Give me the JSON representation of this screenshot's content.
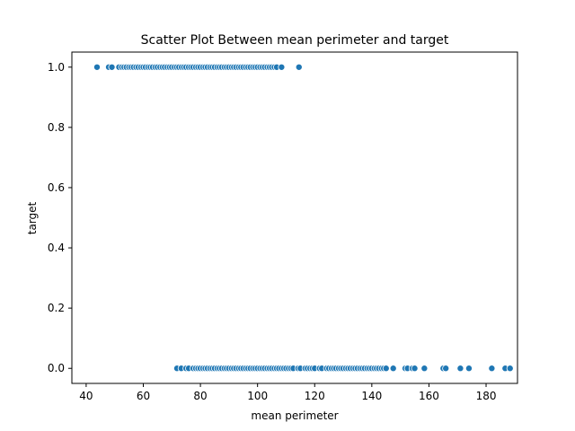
{
  "chart_data": {
    "type": "scatter",
    "title": "Scatter Plot Between mean perimeter and target",
    "xlabel": "mean perimeter",
    "ylabel": "target",
    "xlim": [
      35,
      191
    ],
    "ylim": [
      -0.05,
      1.05
    ],
    "xticks": [
      40,
      60,
      80,
      100,
      120,
      140,
      160,
      180
    ],
    "xtick_labels": [
      "40",
      "60",
      "80",
      "100",
      "120",
      "140",
      "160",
      "180"
    ],
    "yticks": [
      0.0,
      0.2,
      0.4,
      0.6,
      0.8,
      1.0
    ],
    "ytick_labels": [
      "0.0",
      "0.2",
      "0.4",
      "0.6",
      "0.8",
      "1.0"
    ],
    "grid": false,
    "marker_color": "#1f77b4",
    "series": [
      {
        "values_y": 1.0,
        "x": [
          43.8,
          47.9,
          49.0,
          51.5,
          52.5,
          53.3,
          54.1,
          55.0,
          55.8,
          56.6,
          57.5,
          58.3,
          59.2,
          60.0,
          60.8,
          61.7,
          62.5,
          63.3,
          64.2,
          65.0,
          65.9,
          66.7,
          67.5,
          68.4,
          69.2,
          70.0,
          70.9,
          71.7,
          72.5,
          73.4,
          74.2,
          75.0,
          75.9,
          76.7,
          77.5,
          78.4,
          79.2,
          80.0,
          80.9,
          81.7,
          82.5,
          83.4,
          84.2,
          85.0,
          85.9,
          86.7,
          87.5,
          88.4,
          89.2,
          90.0,
          90.9,
          91.7,
          92.5,
          93.4,
          94.2,
          95.0,
          95.9,
          96.7,
          97.5,
          98.4,
          99.2,
          100.0,
          100.9,
          101.7,
          102.5,
          103.4,
          104.2,
          105.0,
          105.9,
          106.7,
          108.4,
          114.5
        ]
      },
      {
        "values_y": 0.0,
        "x": [
          71.8,
          73.3,
          75.0,
          75.9,
          77.5,
          78.4,
          79.2,
          80.0,
          80.9,
          81.7,
          82.5,
          83.4,
          84.2,
          85.0,
          85.9,
          86.7,
          87.5,
          88.4,
          89.2,
          90.0,
          90.9,
          91.7,
          92.5,
          93.4,
          94.2,
          95.0,
          95.9,
          96.7,
          97.5,
          98.4,
          99.2,
          100.0,
          100.9,
          101.7,
          102.5,
          103.4,
          104.2,
          105.0,
          105.9,
          106.7,
          107.5,
          108.4,
          109.2,
          110.0,
          110.9,
          111.7,
          112.5,
          114.2,
          115.0,
          116.7,
          117.5,
          118.4,
          119.2,
          120.0,
          121.7,
          122.5,
          124.2,
          125.0,
          125.9,
          126.7,
          127.5,
          128.4,
          129.2,
          130.0,
          130.9,
          131.7,
          132.5,
          133.4,
          134.2,
          135.0,
          135.9,
          136.7,
          137.5,
          138.4,
          139.2,
          140.0,
          140.9,
          141.7,
          142.5,
          143.4,
          144.2,
          145.0,
          147.5,
          151.7,
          152.5,
          154.2,
          155.0,
          158.4,
          165.0,
          165.9,
          171.0,
          174.0,
          182.0,
          186.7,
          188.4
        ]
      }
    ]
  }
}
